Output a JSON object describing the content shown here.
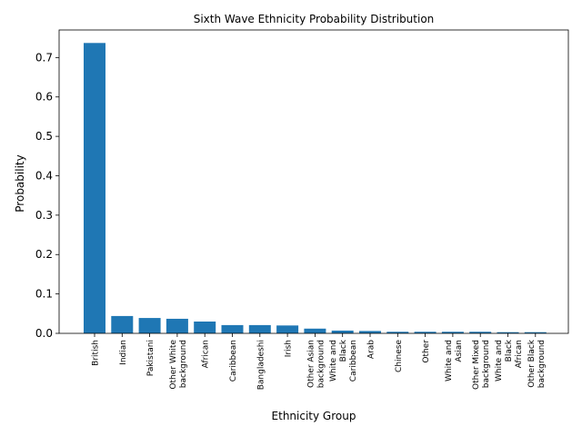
{
  "chart_data": {
    "type": "bar",
    "title": "Sixth Wave Ethnicity Probability Distribution",
    "xlabel": "Ethnicity Group",
    "ylabel": "Probability",
    "ylim": [
      0,
      0.77
    ],
    "yticks": [
      "0.0",
      "0.1",
      "0.2",
      "0.3",
      "0.4",
      "0.5",
      "0.6",
      "0.7"
    ],
    "bar_color": "#1f77b4",
    "grid": false,
    "categories": [
      [
        "British"
      ],
      [
        "Indian"
      ],
      [
        "Pakistani"
      ],
      [
        "Other White",
        "background"
      ],
      [
        "African"
      ],
      [
        "Caribbean"
      ],
      [
        "Bangladeshi"
      ],
      [
        "Irish"
      ],
      [
        "Other Asian",
        "background"
      ],
      [
        "White and",
        "Black",
        "Caribbean"
      ],
      [
        "Arab"
      ],
      [
        "Chinese"
      ],
      [
        "Other"
      ],
      [
        "White and",
        "Asian"
      ],
      [
        "Other Mixed",
        "background"
      ],
      [
        "White and",
        "Black",
        "African"
      ],
      [
        "Other Black",
        "background"
      ]
    ],
    "values": [
      0.737,
      0.044,
      0.039,
      0.037,
      0.03,
      0.021,
      0.021,
      0.02,
      0.012,
      0.007,
      0.006,
      0.004,
      0.004,
      0.004,
      0.004,
      0.003,
      0.003
    ]
  }
}
